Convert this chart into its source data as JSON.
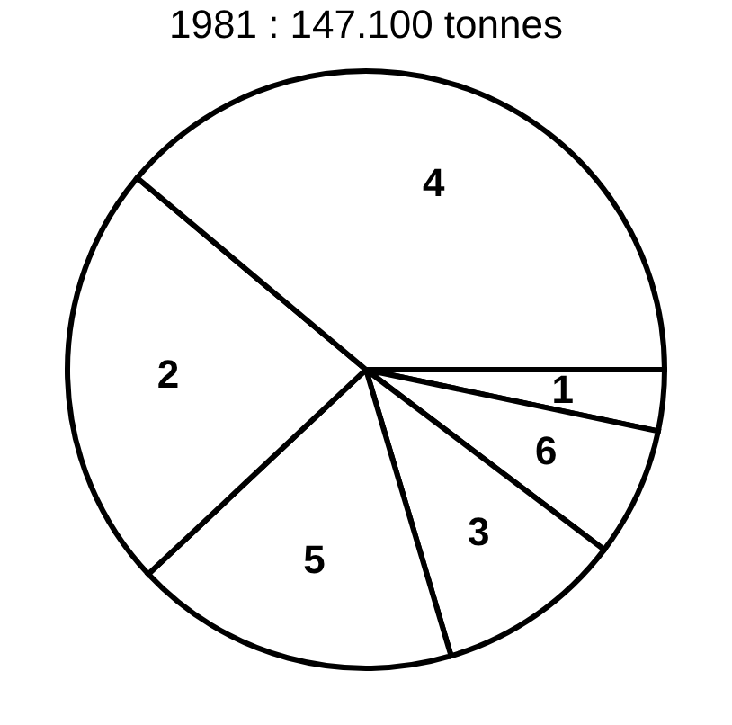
{
  "chart_data": {
    "type": "pie",
    "title": "1981 : 147.100 tonnes",
    "categories": [
      "1",
      "6",
      "3",
      "5",
      "2",
      "4"
    ],
    "values": [
      3.3,
      7.0,
      10.1,
      17.6,
      23.1,
      38.9
    ],
    "colors": [
      "#ffffff",
      "#ffffff",
      "#ffffff",
      "#ffffff",
      "#ffffff",
      "#ffffff"
    ]
  }
}
